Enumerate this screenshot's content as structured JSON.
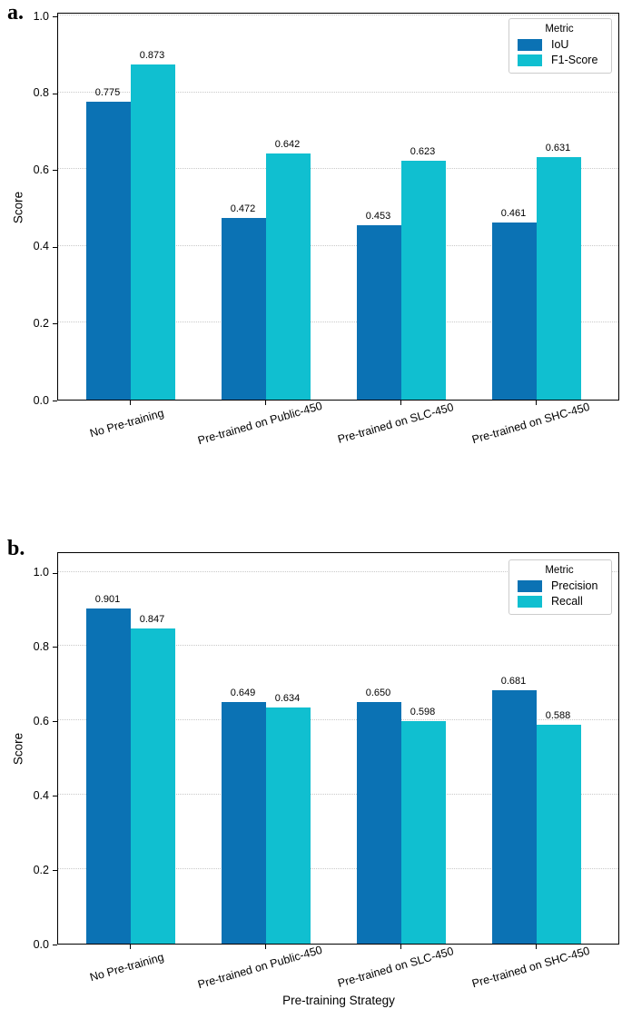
{
  "figure": {
    "background": "#ffffff",
    "axis_color": "#000000",
    "grid_color": "#c9c9c9",
    "legend_border_color": "#cccccc",
    "series_colors": {
      "primary_blue": "#0b72b4",
      "cyan": "#10bfd0"
    }
  },
  "chart_data": [
    {
      "type": "bar",
      "panel_label": "a.",
      "title": "",
      "xlabel": "",
      "ylabel": "Score",
      "ylim": [
        0.0,
        1.0
      ],
      "yticks": [
        0.0,
        0.2,
        0.4,
        0.6,
        0.8,
        1.0
      ],
      "grid": true,
      "legend_position": "top-right",
      "legend_title": "Metric",
      "categories": [
        "No Pre-training",
        "Pre-trained on Public-450",
        "Pre-trained on SLC-450",
        "Pre-trained on SHC-450"
      ],
      "series": [
        {
          "name": "IoU",
          "color": "#0b72b4",
          "values": [
            0.775,
            0.472,
            0.453,
            0.461
          ]
        },
        {
          "name": "F1-Score",
          "color": "#10bfd0",
          "values": [
            0.873,
            0.642,
            0.623,
            0.631
          ]
        }
      ],
      "value_labels": [
        [
          "0.775",
          "0.472",
          "0.453",
          "0.461"
        ],
        [
          "0.873",
          "0.642",
          "0.623",
          "0.631"
        ]
      ]
    },
    {
      "type": "bar",
      "panel_label": "b.",
      "title": "",
      "xlabel": "Pre-training Strategy",
      "ylabel": "Score",
      "ylim": [
        0.0,
        1.0
      ],
      "yticks": [
        0.0,
        0.2,
        0.4,
        0.6,
        0.8,
        1.0
      ],
      "grid": true,
      "legend_position": "top-right",
      "legend_title": "Metric",
      "categories": [
        "No Pre-training",
        "Pre-trained on Public-450",
        "Pre-trained on SLC-450",
        "Pre-trained on SHC-450"
      ],
      "series": [
        {
          "name": "Precision",
          "color": "#0b72b4",
          "values": [
            0.901,
            0.649,
            0.65,
            0.681
          ]
        },
        {
          "name": "Recall",
          "color": "#10bfd0",
          "values": [
            0.847,
            0.634,
            0.598,
            0.588
          ]
        }
      ],
      "value_labels": [
        [
          "0.901",
          "0.649",
          "0.650",
          "0.681"
        ],
        [
          "0.847",
          "0.634",
          "0.598",
          "0.588"
        ]
      ]
    }
  ]
}
